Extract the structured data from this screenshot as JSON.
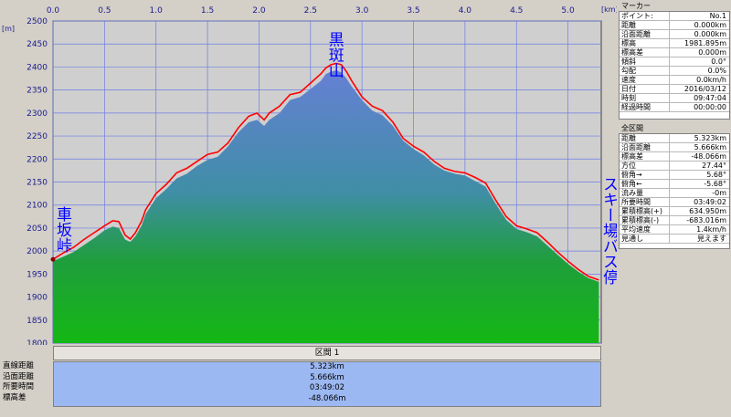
{
  "chart_data": {
    "type": "area",
    "x_unit_label": "[km]",
    "y_unit_label": "[m]",
    "xlim": [
      0.0,
      5.323
    ],
    "ylim": [
      1800,
      2500
    ],
    "x_ticks": [
      "0.0",
      "0.5",
      "1.0",
      "1.5",
      "2.0",
      "2.5",
      "3.0",
      "3.5",
      "4.0",
      "4.5",
      "5.0"
    ],
    "y_ticks": [
      "2500",
      "2450",
      "2400",
      "2350",
      "2300",
      "2250",
      "2200",
      "2150",
      "2100",
      "2050",
      "2000",
      "1950",
      "1900",
      "1850",
      "1800"
    ],
    "series": [
      {
        "color": "#ff0000",
        "x": [
          0.0,
          0.1,
          0.2,
          0.3,
          0.4,
          0.5,
          0.58,
          0.64,
          0.7,
          0.75,
          0.8,
          0.86,
          0.9,
          1.0,
          1.1,
          1.2,
          1.3,
          1.4,
          1.5,
          1.6,
          1.7,
          1.8,
          1.9,
          1.98,
          2.05,
          2.1,
          2.2,
          2.3,
          2.4,
          2.5,
          2.6,
          2.65,
          2.7,
          2.75,
          2.8,
          2.85,
          2.9,
          3.0,
          3.1,
          3.2,
          3.3,
          3.4,
          3.5,
          3.6,
          3.7,
          3.8,
          3.9,
          4.0,
          4.1,
          4.2,
          4.3,
          4.4,
          4.5,
          4.6,
          4.7,
          4.8,
          4.9,
          5.0,
          5.1,
          5.2,
          5.3
        ],
        "y": [
          1982,
          1996,
          2008,
          2025,
          2040,
          2055,
          2066,
          2064,
          2035,
          2026,
          2040,
          2065,
          2090,
          2125,
          2145,
          2170,
          2180,
          2195,
          2210,
          2215,
          2235,
          2268,
          2293,
          2300,
          2285,
          2300,
          2315,
          2340,
          2345,
          2365,
          2385,
          2398,
          2405,
          2408,
          2405,
          2390,
          2370,
          2335,
          2315,
          2305,
          2280,
          2245,
          2228,
          2215,
          2195,
          2180,
          2173,
          2170,
          2160,
          2148,
          2110,
          2075,
          2055,
          2048,
          2040,
          2020,
          1998,
          1978,
          1960,
          1945,
          1937
        ]
      },
      {
        "color": "#2a9a2a",
        "x": [
          0.0,
          0.1,
          0.2,
          0.3,
          0.4,
          0.5,
          0.58,
          0.64,
          0.7,
          0.75,
          0.8,
          0.86,
          0.9,
          1.0,
          1.1,
          1.2,
          1.3,
          1.4,
          1.5,
          1.6,
          1.7,
          1.8,
          1.9,
          1.98,
          2.05,
          2.1,
          2.2,
          2.3,
          2.4,
          2.5,
          2.6,
          2.65,
          2.7,
          2.75,
          2.8,
          2.85,
          2.9,
          3.0,
          3.1,
          3.2,
          3.3,
          3.4,
          3.5,
          3.6,
          3.7,
          3.8,
          3.9,
          4.0,
          4.1,
          4.2,
          4.3,
          4.4,
          4.5,
          4.6,
          4.7,
          4.8,
          4.9,
          5.0,
          5.1,
          5.2,
          5.3
        ],
        "y": [
          1978,
          1988,
          1998,
          2013,
          2028,
          2045,
          2053,
          2050,
          2025,
          2020,
          2032,
          2055,
          2080,
          2115,
          2135,
          2158,
          2168,
          2185,
          2198,
          2205,
          2228,
          2258,
          2280,
          2285,
          2272,
          2285,
          2300,
          2328,
          2335,
          2352,
          2370,
          2385,
          2390,
          2393,
          2388,
          2375,
          2358,
          2328,
          2305,
          2295,
          2272,
          2240,
          2222,
          2208,
          2188,
          2175,
          2168,
          2164,
          2152,
          2140,
          2102,
          2068,
          2048,
          2041,
          2032,
          2012,
          1992,
          1972,
          1955,
          1941,
          1933
        ]
      }
    ],
    "annotations": [
      {
        "text": "黒斑山",
        "x": 2.73,
        "y": 2455
      },
      {
        "text": "車坂峠",
        "x": 0.08,
        "y": 2045
      },
      {
        "text": "スキー場バス停",
        "x": 5.3,
        "y": 2080
      }
    ],
    "colors": {
      "plot_bg": "#cfcfcf",
      "grid": "#6c7ee6",
      "area_top": "#6680d4",
      "area_bottom": "#14b814",
      "profile_line": "#ff0000"
    }
  },
  "section": {
    "header": "区間 1",
    "labels": [
      "直線距離",
      "沿面距離",
      "所要時間",
      "標高差"
    ],
    "values": [
      "5.323km",
      "5.666km",
      "03:49:02",
      "-48.066m"
    ]
  },
  "marker_panel": {
    "title": "マーカー",
    "rows": [
      {
        "label": "ポイント:",
        "value": "No.1"
      },
      {
        "label": "距離",
        "value": "0.000km"
      },
      {
        "label": "沿面距離",
        "value": "0.000km"
      },
      {
        "label": "標高",
        "value": "1981.895m"
      },
      {
        "label": "標高差",
        "value": "0.000m"
      },
      {
        "label": "傾斜",
        "value": "0.0°"
      },
      {
        "label": "勾配",
        "value": "0.0%"
      },
      {
        "label": "速度",
        "value": "0.0km/h"
      },
      {
        "label": "日付",
        "value": "2016/03/12"
      },
      {
        "label": "時刻",
        "value": "09:47:04"
      },
      {
        "label": "経過時間",
        "value": "00:00:00"
      }
    ]
  },
  "total_panel": {
    "title": "全区間",
    "rows": [
      {
        "label": "距離",
        "value": "5.323km"
      },
      {
        "label": "沿面距離",
        "value": "5.666km"
      },
      {
        "label": "標高差",
        "value": "-48.066m"
      },
      {
        "label": "方位",
        "value": "27.44°"
      },
      {
        "label": "俯角→",
        "value": "5.68°"
      },
      {
        "label": "俯角←",
        "value": "-5.68°"
      },
      {
        "label": "流み量",
        "value": "-0m"
      },
      {
        "label": "所要時間",
        "value": "03:49:02"
      },
      {
        "label": "累積標高(+)",
        "value": "634.950m"
      },
      {
        "label": "累積標高(-)",
        "value": "-683.016m"
      },
      {
        "label": "平均速度",
        "value": "1.4km/h"
      },
      {
        "label": "見通し",
        "value": "見えます"
      }
    ]
  }
}
